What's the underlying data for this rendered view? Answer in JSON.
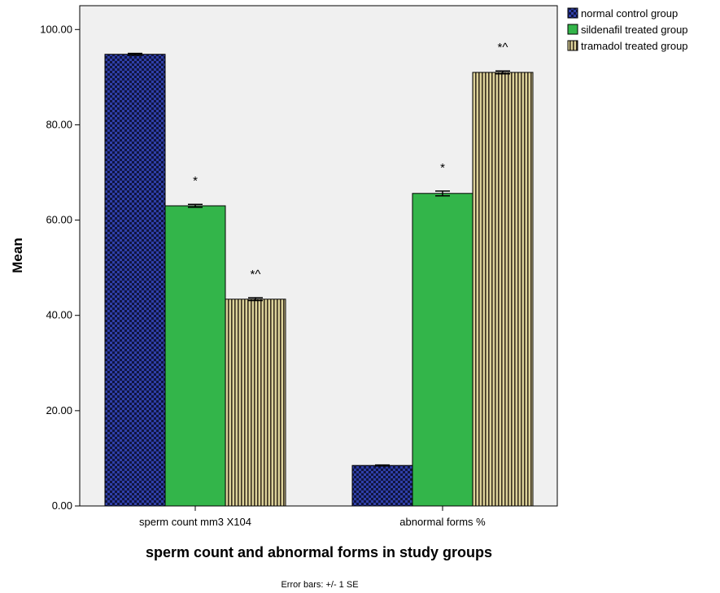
{
  "chart_data": {
    "type": "bar",
    "categories": [
      "sperm count mm3 X104",
      "abnormal forms %"
    ],
    "series": [
      {
        "name": "normal control group",
        "values": [
          94.8,
          8.5
        ],
        "errors": [
          0.2,
          0.1
        ],
        "annotations": [
          "",
          ""
        ],
        "color": "#2f3fa8",
        "pattern": "checker"
      },
      {
        "name": "sildenafil treated group",
        "values": [
          63.0,
          65.6
        ],
        "errors": [
          0.3,
          0.5
        ],
        "annotations": [
          "*",
          "*"
        ],
        "color": "#33b54a",
        "pattern": "solid"
      },
      {
        "name": "tramadol treated group",
        "values": [
          43.4,
          91.0
        ],
        "errors": [
          0.3,
          0.3
        ],
        "annotations": [
          "*^",
          "*^"
        ],
        "color": "#dcd29a",
        "pattern": "vstripes"
      }
    ],
    "ylabel": "Mean",
    "xlabel": "sperm count and abnormal forms in study groups",
    "ylim": [
      0,
      105
    ],
    "yticks": [
      "0.00",
      "20.00",
      "40.00",
      "60.00",
      "80.00",
      "100.00"
    ],
    "footnote": "Error bars: +/- 1 SE",
    "legend_position": "top-right",
    "grid": false,
    "plot_background": "#f0f0f0"
  }
}
